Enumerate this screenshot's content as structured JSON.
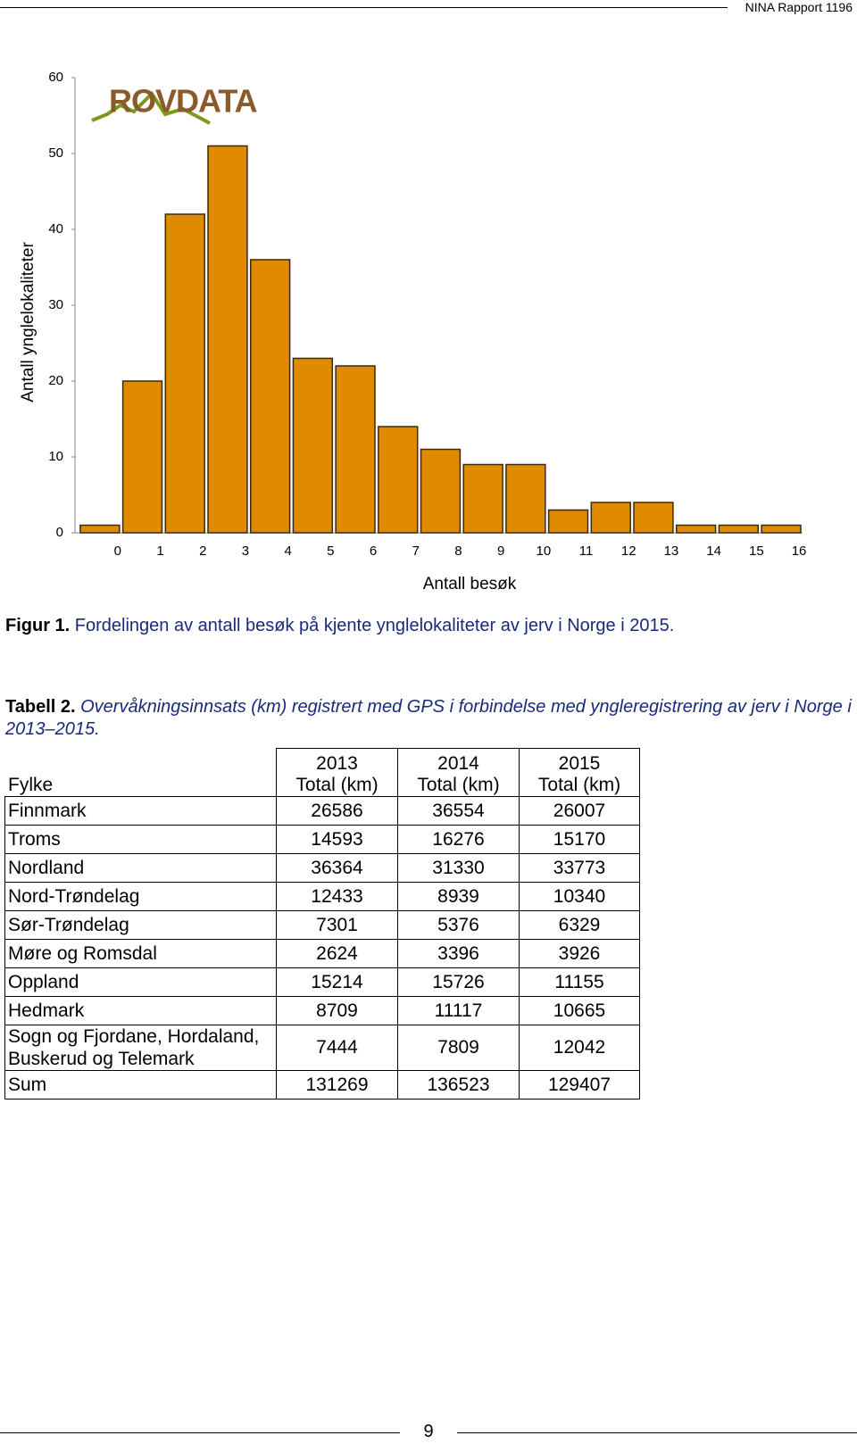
{
  "header": {
    "text": "NINA Rapport 1196"
  },
  "chart_data": {
    "type": "bar",
    "logo": "ROVDATA",
    "y_label": "Antall ynglelokaliteter",
    "x_label": "Antall besøk",
    "categories": [
      "0",
      "1",
      "2",
      "3",
      "4",
      "5",
      "6",
      "7",
      "8",
      "9",
      "10",
      "11",
      "12",
      "13",
      "14",
      "15",
      "16"
    ],
    "values": [
      1,
      20,
      42,
      51,
      36,
      23,
      22,
      14,
      11,
      9,
      9,
      3,
      4,
      4,
      1,
      1,
      1
    ],
    "color": "#e08a00",
    "ylim": [
      0,
      60
    ],
    "yticks": [
      0,
      10,
      20,
      30,
      40,
      50,
      60
    ],
    "grid": false
  },
  "caption": {
    "label": "Figur 1.",
    "text": "Fordelingen av antall besøk på kjente ynglelokaliteter av jerv i Norge i 2015."
  },
  "table_title": {
    "label": "Tabell 2.",
    "text": "Overvåkningsinnsats (km) registrert med GPS i forbindelse med yngleregistrering av jerv i Norge i 2013–2015."
  },
  "table": {
    "first_header": "Fylke",
    "columns": [
      {
        "year": "2013",
        "unit": "Total (km)"
      },
      {
        "year": "2014",
        "unit": "Total (km)"
      },
      {
        "year": "2015",
        "unit": "Total (km)"
      }
    ],
    "rows": [
      [
        "Finnmark",
        26586,
        36554,
        26007
      ],
      [
        "Troms",
        14593,
        16276,
        15170
      ],
      [
        "Nordland",
        36364,
        31330,
        33773
      ],
      [
        "Nord-Trøndelag",
        12433,
        8939,
        10340
      ],
      [
        "Sør-Trøndelag",
        7301,
        5376,
        6329
      ],
      [
        "Møre og Romsdal",
        2624,
        3396,
        3926
      ],
      [
        "Oppland",
        15214,
        15726,
        11155
      ],
      [
        "Hedmark",
        8709,
        11117,
        10665
      ],
      [
        "Sogn og Fjordane, Hordaland, Buskerud og Telemark",
        7444,
        7809,
        12042
      ],
      [
        "Sum",
        131269,
        136523,
        129407
      ]
    ]
  },
  "page_number": 9
}
